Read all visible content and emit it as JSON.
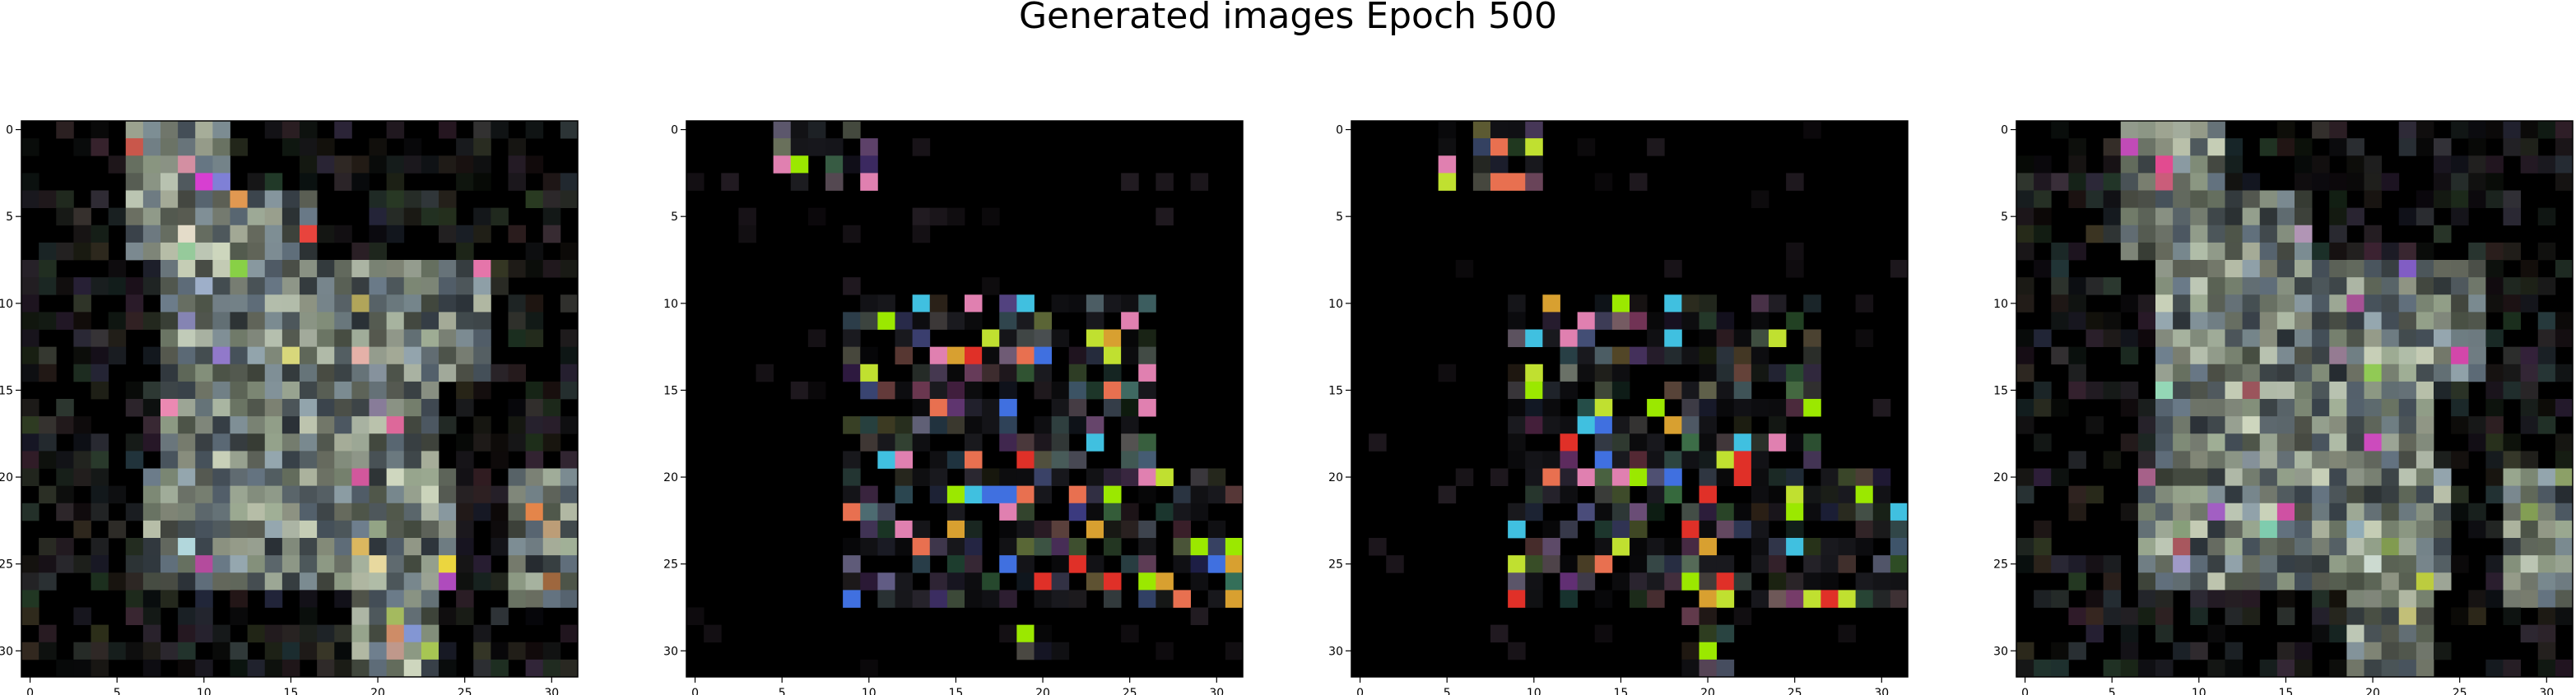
{
  "figure": {
    "title": "Generated images Epoch 500"
  },
  "chart_data": [
    {
      "type": "heatmap",
      "panel": 1,
      "pattern": "dense-figure",
      "xlim": [
        -0.5,
        31.5
      ],
      "ylim": [
        31.5,
        -0.5
      ],
      "xticks": [
        0,
        5,
        10,
        15,
        20,
        25,
        30
      ],
      "yticks": [
        0,
        5,
        10,
        15,
        20,
        25,
        30
      ],
      "background_color": "#000000",
      "accent_colors": [
        "#a8b4a0",
        "#8fa0a8",
        "#c8d0b8",
        "#7a8a90",
        "#b8c2b0",
        "#9aa890",
        "#6a7a88"
      ]
    },
    {
      "type": "heatmap",
      "panel": 2,
      "pattern": "sparse-figure",
      "xlim": [
        -0.5,
        31.5
      ],
      "ylim": [
        31.5,
        -0.5
      ],
      "xticks": [
        0,
        5,
        10,
        15,
        20,
        25,
        30
      ],
      "yticks": [
        0,
        5,
        10,
        15,
        20,
        25,
        30
      ],
      "background_color": "#000000",
      "accent_colors": [
        "#9be800",
        "#e87050",
        "#4070e0",
        "#d8a030",
        "#e080b0",
        "#40c0e0",
        "#c0e030",
        "#e03028"
      ]
    },
    {
      "type": "heatmap",
      "panel": 3,
      "pattern": "sparse-figure",
      "xlim": [
        -0.5,
        31.5
      ],
      "ylim": [
        31.5,
        -0.5
      ],
      "xticks": [
        0,
        5,
        10,
        15,
        20,
        25,
        30
      ],
      "yticks": [
        0,
        5,
        10,
        15,
        20,
        25,
        30
      ],
      "background_color": "#000000",
      "accent_colors": [
        "#9be800",
        "#e87050",
        "#4070e0",
        "#d8a030",
        "#e080b0",
        "#40c0e0",
        "#c0e030",
        "#e03028"
      ]
    },
    {
      "type": "heatmap",
      "panel": 4,
      "pattern": "dense-figure",
      "xlim": [
        -0.5,
        31.5
      ],
      "ylim": [
        31.5,
        -0.5
      ],
      "xticks": [
        0,
        5,
        10,
        15,
        20,
        25,
        30
      ],
      "yticks": [
        0,
        5,
        10,
        15,
        20,
        25,
        30
      ],
      "background_color": "#000000",
      "accent_colors": [
        "#a8b4a0",
        "#8fa0a8",
        "#c8d0b8",
        "#7a8a90",
        "#b8c2b0",
        "#9aa890",
        "#6a7a88"
      ]
    }
  ]
}
